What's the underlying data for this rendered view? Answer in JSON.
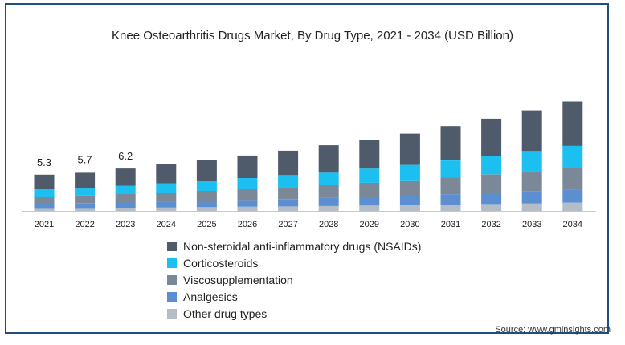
{
  "chart_data": {
    "type": "bar",
    "stacked": true,
    "title": "Knee Osteoarthritis Drugs Market, By Drug Type, 2021 - 2034 (USD Billion)",
    "categories": [
      "2021",
      "2022",
      "2023",
      "2024",
      "2025",
      "2026",
      "2027",
      "2028",
      "2029",
      "2030",
      "2031",
      "2032",
      "2033",
      "2034"
    ],
    "totals": [
      5.3,
      5.7,
      6.2,
      6.8,
      7.4,
      8.1,
      8.8,
      9.6,
      10.4,
      11.3,
      12.4,
      13.5,
      14.7,
      16.0
    ],
    "total_labels": [
      "5.3",
      "5.7",
      "6.2"
    ],
    "series": [
      {
        "name": "Other drug types",
        "color": "#b4bcc6",
        "values": [
          0.4,
          0.43,
          0.47,
          0.51,
          0.55,
          0.6,
          0.66,
          0.72,
          0.78,
          0.85,
          0.93,
          1.01,
          1.1,
          1.2
        ]
      },
      {
        "name": "Analgesics",
        "color": "#5b8fd1",
        "values": [
          0.65,
          0.7,
          0.76,
          0.83,
          0.91,
          0.99,
          1.08,
          1.17,
          1.27,
          1.38,
          1.51,
          1.65,
          1.8,
          1.95
        ]
      },
      {
        "name": "Viscosupplementation",
        "color": "#7b8898",
        "values": [
          1.05,
          1.13,
          1.23,
          1.35,
          1.47,
          1.61,
          1.75,
          1.91,
          2.07,
          2.25,
          2.47,
          2.69,
          2.93,
          3.18
        ]
      },
      {
        "name": "Corticosteroids",
        "color": "#1bc0f0",
        "values": [
          1.05,
          1.13,
          1.23,
          1.35,
          1.47,
          1.61,
          1.75,
          1.91,
          2.07,
          2.25,
          2.47,
          2.69,
          2.93,
          3.18
        ]
      },
      {
        "name": "Non-steroidal anti-inflammatory drugs (NSAIDs)",
        "color": "#4f5a6a",
        "values": [
          2.15,
          2.31,
          2.51,
          2.76,
          3.0,
          3.29,
          3.56,
          3.89,
          4.21,
          4.57,
          5.02,
          5.46,
          5.94,
          6.49
        ]
      }
    ],
    "legend": [
      {
        "name": "Non-steroidal anti-inflammatory drugs (NSAIDs)",
        "color": "#4f5a6a"
      },
      {
        "name": "Corticosteroids",
        "color": "#1bc0f0"
      },
      {
        "name": "Viscosupplementation",
        "color": "#7b8898"
      },
      {
        "name": "Analgesics",
        "color": "#5b8fd1"
      },
      {
        "name": "Other drug types",
        "color": "#b4bcc6"
      }
    ],
    "legend_position": "bottom-center",
    "grid": false,
    "ylim": [
      0,
      17
    ]
  },
  "source": "Source: www.gminsights.com"
}
